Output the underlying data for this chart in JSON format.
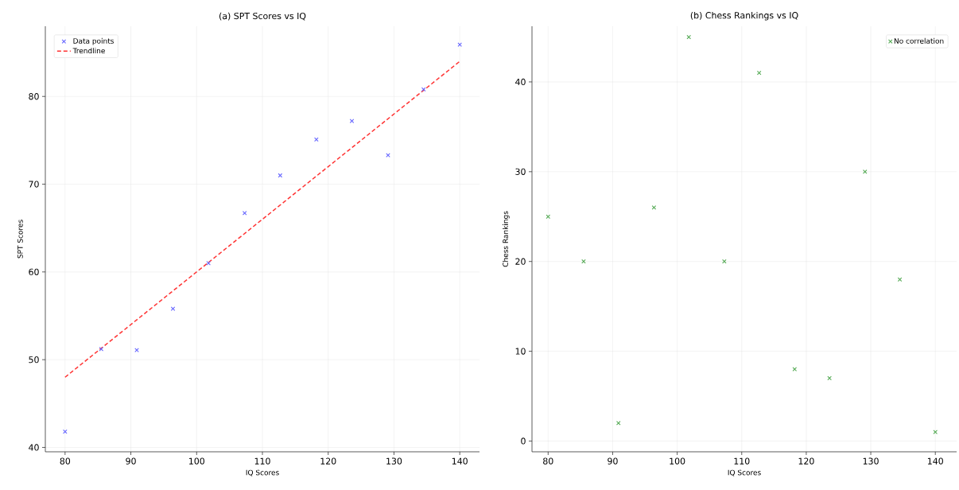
{
  "chart_data": [
    {
      "type": "scatter",
      "title": "(a) SPT Scores vs IQ",
      "xlabel": "IQ Scores",
      "ylabel": "SPT Scores",
      "xlim": [
        77,
        143
      ],
      "ylim": [
        39.5,
        88
      ],
      "xticks": [
        80,
        90,
        100,
        110,
        120,
        130,
        140
      ],
      "yticks": [
        40,
        50,
        60,
        70,
        80
      ],
      "grid": true,
      "legend": "top left",
      "series": [
        {
          "name": "Data points",
          "marker": "cross",
          "color": "#6666ff",
          "x": [
            80,
            85.5,
            90.9,
            96.4,
            101.8,
            107.3,
            112.7,
            118.2,
            123.6,
            129.1,
            134.5,
            140
          ],
          "values": [
            41.8,
            51.2,
            51.1,
            55.8,
            61.0,
            66.7,
            71.0,
            75.1,
            77.2,
            73.3,
            80.8,
            85.9
          ]
        },
        {
          "name": "Trendline",
          "type": "line",
          "color": "#ff3333",
          "line_style": "dashed",
          "x": [
            80,
            140
          ],
          "values": [
            48.0,
            84.0
          ]
        }
      ]
    },
    {
      "type": "scatter",
      "title": "(b) Chess Rankings vs IQ",
      "xlabel": "IQ Scores",
      "ylabel": "Chess Rankings",
      "xlim": [
        77.5,
        143.3
      ],
      "ylim": [
        -1.2,
        46.2
      ],
      "xticks": [
        80,
        90,
        100,
        110,
        120,
        130,
        140
      ],
      "yticks": [
        0,
        10,
        20,
        30,
        40
      ],
      "grid": true,
      "legend": "top right",
      "series": [
        {
          "name": "No correlation",
          "marker": "cross",
          "color": "#55aa55",
          "x": [
            80,
            85.5,
            90.9,
            96.4,
            101.8,
            107.3,
            112.7,
            118.2,
            123.6,
            129.1,
            134.5,
            140
          ],
          "values": [
            25,
            20,
            2,
            26,
            45,
            20,
            41,
            8,
            7,
            30,
            18,
            1
          ]
        }
      ]
    }
  ]
}
